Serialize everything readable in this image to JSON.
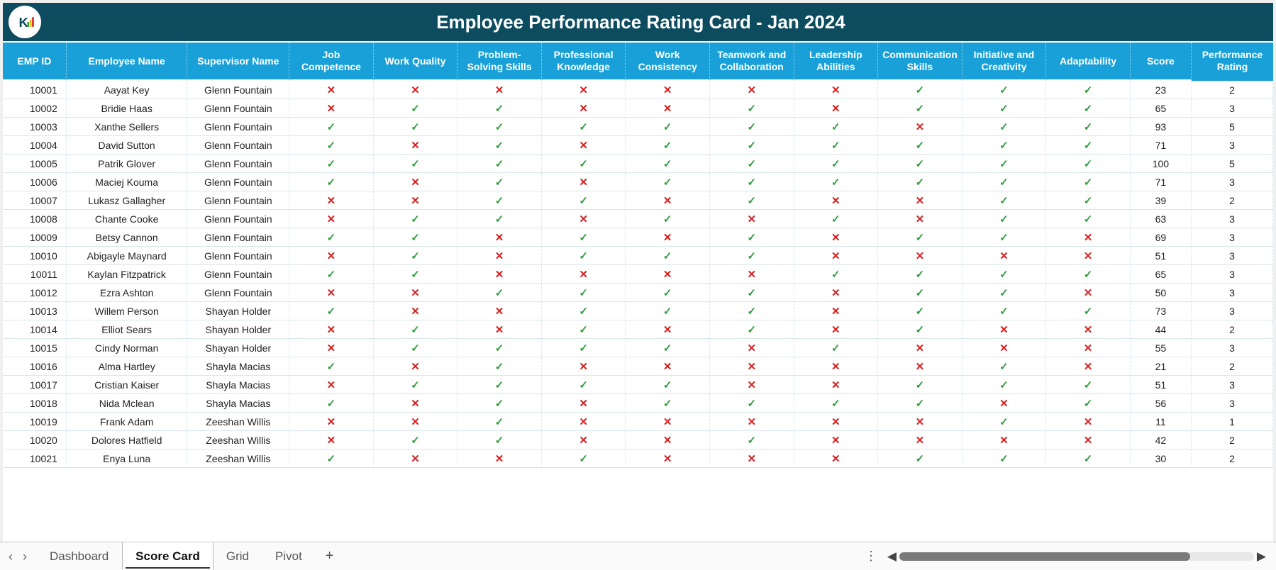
{
  "colors": {
    "header_bar_bg": "#0d4b5f",
    "header_text": "#ffffff",
    "col_header_bg": "#1aa0d8",
    "col_header_text": "#ffffff",
    "row_border": "#d9e6ec",
    "cell_dotted_border": "#cfe4ee",
    "check_green": "#2e9e3a",
    "cross_red": "#d81e1e",
    "tabbar_bg": "#fafafa",
    "tab_active_underline": "#333333",
    "logo_blue": "#1aa0d8",
    "logo_accent1": "#2e9e3a",
    "logo_accent2": "#f5b800",
    "logo_accent3": "#d81e1e"
  },
  "header": {
    "title": "Employee Performance Rating Card - Jan 2024"
  },
  "icons": {
    "check": "✓",
    "cross": "✕",
    "chevron_left": "‹",
    "chevron_right": "›",
    "plus": "+",
    "vdots": "⋮",
    "tri_left": "◀",
    "tri_right": "▶"
  },
  "table": {
    "columns": [
      "EMP ID",
      "Employee Name",
      "Supervisor Name",
      "Job Competence",
      "Work Quality",
      "Problem-Solving Skills",
      "Professional Knowledge",
      "Work Consistency",
      "Teamwork and Collaboration",
      "Leadership Abilities",
      "Communication Skills",
      "Initiative and Creativity",
      "Adaptability",
      "Score",
      "Performance Rating"
    ],
    "rows": [
      {
        "id": "10001",
        "name": "Aayat Key",
        "sup": "Glenn Fountain",
        "cats": [
          0,
          0,
          0,
          0,
          0,
          0,
          0,
          1,
          1,
          1
        ],
        "score": 23,
        "rating": 2
      },
      {
        "id": "10002",
        "name": "Bridie Haas",
        "sup": "Glenn Fountain",
        "cats": [
          0,
          1,
          1,
          0,
          0,
          1,
          0,
          1,
          1,
          1
        ],
        "score": 65,
        "rating": 3
      },
      {
        "id": "10003",
        "name": "Xanthe Sellers",
        "sup": "Glenn Fountain",
        "cats": [
          1,
          1,
          1,
          1,
          1,
          1,
          1,
          0,
          1,
          1
        ],
        "score": 93,
        "rating": 5
      },
      {
        "id": "10004",
        "name": "David Sutton",
        "sup": "Glenn Fountain",
        "cats": [
          1,
          0,
          1,
          0,
          1,
          1,
          1,
          1,
          1,
          1
        ],
        "score": 71,
        "rating": 3
      },
      {
        "id": "10005",
        "name": "Patrik Glover",
        "sup": "Glenn Fountain",
        "cats": [
          1,
          1,
          1,
          1,
          1,
          1,
          1,
          1,
          1,
          1
        ],
        "score": 100,
        "rating": 5
      },
      {
        "id": "10006",
        "name": "Maciej Kouma",
        "sup": "Glenn Fountain",
        "cats": [
          1,
          0,
          1,
          0,
          1,
          1,
          1,
          1,
          1,
          1
        ],
        "score": 71,
        "rating": 3
      },
      {
        "id": "10007",
        "name": "Lukasz Gallagher",
        "sup": "Glenn Fountain",
        "cats": [
          0,
          0,
          1,
          1,
          0,
          1,
          0,
          0,
          1,
          1
        ],
        "score": 39,
        "rating": 2
      },
      {
        "id": "10008",
        "name": "Chante Cooke",
        "sup": "Glenn Fountain",
        "cats": [
          0,
          1,
          1,
          0,
          1,
          0,
          1,
          0,
          1,
          1
        ],
        "score": 63,
        "rating": 3
      },
      {
        "id": "10009",
        "name": "Betsy Cannon",
        "sup": "Glenn Fountain",
        "cats": [
          1,
          1,
          0,
          1,
          0,
          1,
          0,
          1,
          1,
          0
        ],
        "score": 69,
        "rating": 3
      },
      {
        "id": "10010",
        "name": "Abigayle Maynard",
        "sup": "Glenn Fountain",
        "cats": [
          0,
          1,
          0,
          1,
          1,
          1,
          0,
          0,
          0,
          0
        ],
        "score": 51,
        "rating": 3
      },
      {
        "id": "10011",
        "name": "Kaylan Fitzpatrick",
        "sup": "Glenn Fountain",
        "cats": [
          1,
          1,
          0,
          0,
          0,
          0,
          1,
          1,
          1,
          1
        ],
        "score": 65,
        "rating": 3
      },
      {
        "id": "10012",
        "name": "Ezra Ashton",
        "sup": "Glenn Fountain",
        "cats": [
          0,
          0,
          1,
          1,
          1,
          1,
          0,
          1,
          1,
          0
        ],
        "score": 50,
        "rating": 3
      },
      {
        "id": "10013",
        "name": "Willem Person",
        "sup": "Shayan Holder",
        "cats": [
          1,
          0,
          0,
          1,
          1,
          1,
          0,
          1,
          1,
          1
        ],
        "score": 73,
        "rating": 3
      },
      {
        "id": "10014",
        "name": "Elliot Sears",
        "sup": "Shayan Holder",
        "cats": [
          0,
          1,
          0,
          1,
          0,
          1,
          0,
          1,
          0,
          0
        ],
        "score": 44,
        "rating": 2
      },
      {
        "id": "10015",
        "name": "Cindy Norman",
        "sup": "Shayan Holder",
        "cats": [
          0,
          1,
          1,
          1,
          1,
          0,
          1,
          0,
          0,
          0
        ],
        "score": 55,
        "rating": 3
      },
      {
        "id": "10016",
        "name": "Alma Hartley",
        "sup": "Shayla Macias",
        "cats": [
          1,
          0,
          1,
          0,
          0,
          0,
          0,
          0,
          1,
          0
        ],
        "score": 21,
        "rating": 2
      },
      {
        "id": "10017",
        "name": "Cristian Kaiser",
        "sup": "Shayla Macias",
        "cats": [
          0,
          1,
          1,
          1,
          1,
          0,
          0,
          1,
          1,
          1
        ],
        "score": 51,
        "rating": 3
      },
      {
        "id": "10018",
        "name": "Nida Mclean",
        "sup": "Shayla Macias",
        "cats": [
          1,
          0,
          1,
          0,
          1,
          1,
          1,
          1,
          0,
          1
        ],
        "score": 56,
        "rating": 3
      },
      {
        "id": "10019",
        "name": "Frank Adam",
        "sup": "Zeeshan Willis",
        "cats": [
          0,
          0,
          1,
          0,
          0,
          0,
          0,
          0,
          1,
          0
        ],
        "score": 11,
        "rating": 1
      },
      {
        "id": "10020",
        "name": "Dolores Hatfield",
        "sup": "Zeeshan Willis",
        "cats": [
          0,
          1,
          1,
          0,
          0,
          1,
          0,
          0,
          0,
          0
        ],
        "score": 42,
        "rating": 2
      },
      {
        "id": "10021",
        "name": "Enya Luna",
        "sup": "Zeeshan Willis",
        "cats": [
          1,
          0,
          0,
          1,
          0,
          0,
          0,
          1,
          1,
          1
        ],
        "score": 30,
        "rating": 2
      }
    ]
  },
  "tabs": {
    "items": [
      "Dashboard",
      "Score Card",
      "Grid",
      "Pivot"
    ],
    "active_index": 1
  },
  "scrollbar": {
    "thumb_left_pct": 0,
    "thumb_width_pct": 82
  }
}
